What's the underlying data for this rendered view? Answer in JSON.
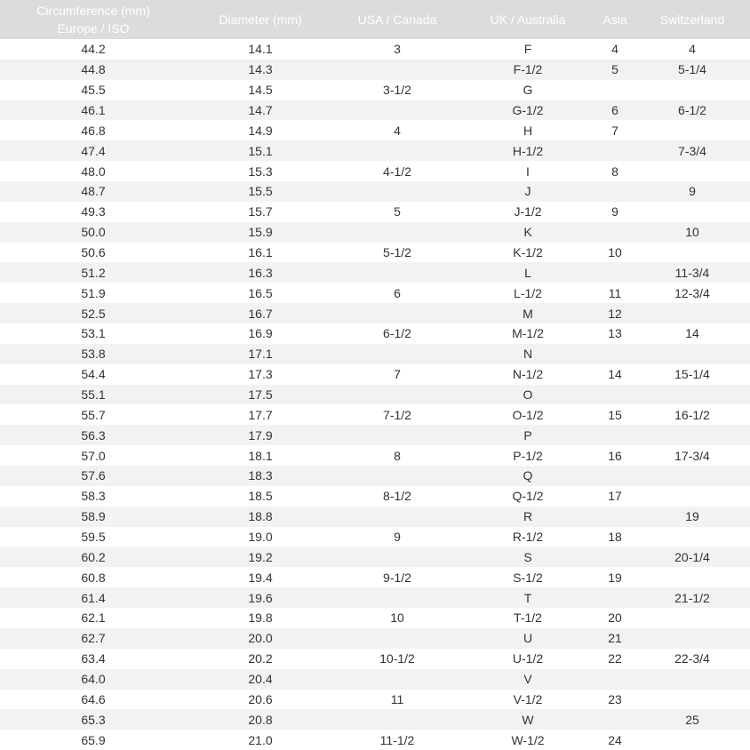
{
  "headers": [
    "Circumference (mm)\nEurope / ISO",
    "Diameter (mm)",
    "USA / Canada",
    "UK / Australia",
    "Asia",
    "Switzerland"
  ],
  "header_lines": [
    [
      "Circumference (mm)",
      "Europe / ISO"
    ],
    [
      "Diameter (mm)"
    ],
    [
      "USA / Canada"
    ],
    [
      "UK / Australia"
    ],
    [
      "Asia"
    ],
    [
      "Switzerland"
    ]
  ],
  "colors": {
    "header_bg": "#dcdcdc",
    "header_text": "#ffffff",
    "row_alt": "#f2f2f2"
  },
  "rows": [
    [
      "44.2",
      "14.1",
      "3",
      "F",
      "4",
      "4"
    ],
    [
      "44.8",
      "14.3",
      "",
      "F-1/2",
      "5",
      "5-1/4"
    ],
    [
      "45.5",
      "14.5",
      "3-1/2",
      "G",
      "",
      ""
    ],
    [
      "46.1",
      "14.7",
      "",
      "G-1/2",
      "6",
      "6-1/2"
    ],
    [
      "46.8",
      "14.9",
      "4",
      "H",
      "7",
      ""
    ],
    [
      "47.4",
      "15.1",
      "",
      "H-1/2",
      "",
      "7-3/4"
    ],
    [
      "48.0",
      "15.3",
      "4-1/2",
      "I",
      "8",
      ""
    ],
    [
      "48.7",
      "15.5",
      "",
      "J",
      "",
      "9"
    ],
    [
      "49.3",
      "15.7",
      "5",
      "J-1/2",
      "9",
      ""
    ],
    [
      "50.0",
      "15.9",
      "",
      "K",
      "",
      "10"
    ],
    [
      "50.6",
      "16.1",
      "5-1/2",
      "K-1/2",
      "10",
      ""
    ],
    [
      "51.2",
      "16.3",
      "",
      "L",
      "",
      "11-3/4"
    ],
    [
      "51.9",
      "16.5",
      "6",
      "L-1/2",
      "11",
      "12-3/4"
    ],
    [
      "52.5",
      "16.7",
      "",
      "M",
      "12",
      ""
    ],
    [
      "53.1",
      "16.9",
      "6-1/2",
      "M-1/2",
      "13",
      "14"
    ],
    [
      "53.8",
      "17.1",
      "",
      "N",
      "",
      ""
    ],
    [
      "54.4",
      "17.3",
      "7",
      "N-1/2",
      "14",
      "15-1/4"
    ],
    [
      "55.1",
      "17.5",
      "",
      "O",
      "",
      ""
    ],
    [
      "55.7",
      "17.7",
      "7-1/2",
      "O-1/2",
      "15",
      "16-1/2"
    ],
    [
      "56.3",
      "17.9",
      "",
      "P",
      "",
      ""
    ],
    [
      "57.0",
      "18.1",
      "8",
      "P-1/2",
      "16",
      "17-3/4"
    ],
    [
      "57.6",
      "18.3",
      "",
      "Q",
      "",
      ""
    ],
    [
      "58.3",
      "18.5",
      "8-1/2",
      "Q-1/2",
      "17",
      ""
    ],
    [
      "58.9",
      "18.8",
      "",
      "R",
      "",
      "19"
    ],
    [
      "59.5",
      "19.0",
      "9",
      "R-1/2",
      "18",
      ""
    ],
    [
      "60.2",
      "19.2",
      "",
      "S",
      "",
      "20-1/4"
    ],
    [
      "60.8",
      "19.4",
      "9-1/2",
      "S-1/2",
      "19",
      ""
    ],
    [
      "61.4",
      "19.6",
      "",
      "T",
      "",
      "21-1/2"
    ],
    [
      "62.1",
      "19.8",
      "10",
      "T-1/2",
      "20",
      ""
    ],
    [
      "62.7",
      "20.0",
      "",
      "U",
      "21",
      ""
    ],
    [
      "63.4",
      "20.2",
      "10-1/2",
      "U-1/2",
      "22",
      "22-3/4"
    ],
    [
      "64.0",
      "20.4",
      "",
      "V",
      "",
      ""
    ],
    [
      "64.6",
      "20.6",
      "11",
      "V-1/2",
      "23",
      ""
    ],
    [
      "65.3",
      "20.8",
      "",
      "W",
      "",
      "25"
    ],
    [
      "65.9",
      "21.0",
      "11-1/2",
      "W-1/2",
      "24",
      ""
    ]
  ]
}
